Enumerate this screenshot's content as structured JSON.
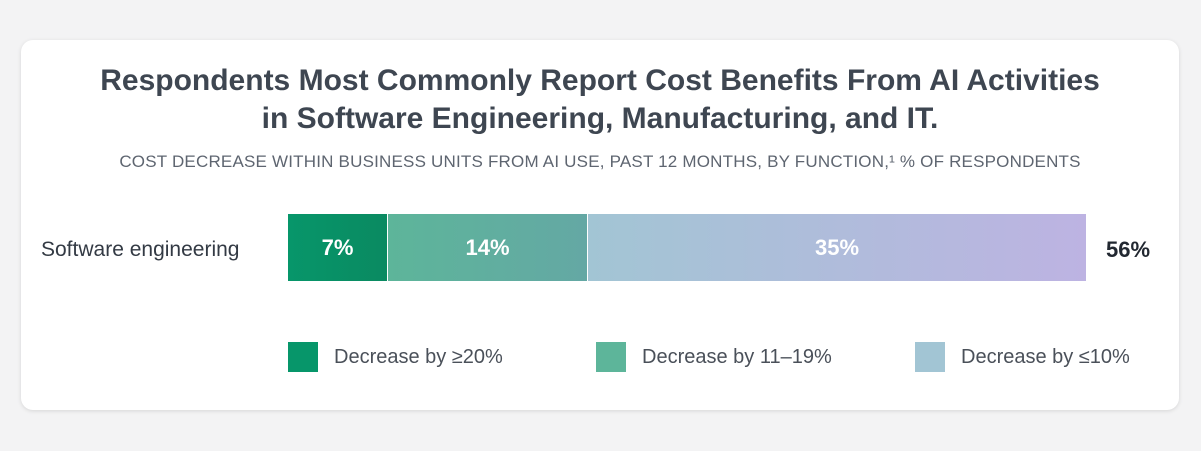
{
  "chart_data": {
    "type": "bar",
    "orientation": "horizontal",
    "stacked": true,
    "title": "Respondents Most Commonly Report Cost Benefits From AI Activities in Software Engineering, Manufacturing, and IT.",
    "title_lines": [
      "Respondents Most Commonly Report Cost Benefits From AI Activities",
      "in Software Engineering, Manufacturing, and IT."
    ],
    "subtitle": "COST DECREASE WITHIN BUSINESS UNITS FROM AI USE, PAST 12 MONTHS, BY FUNCTION,¹ % OF RESPONDENTS",
    "categories": [
      "Software engineering"
    ],
    "series": [
      {
        "name": "Decrease by ≥20%",
        "values": [
          7
        ],
        "data_labels": [
          "7%"
        ],
        "color": "#07966a"
      },
      {
        "name": "Decrease by 11–19%",
        "values": [
          14
        ],
        "data_labels": [
          "14%"
        ],
        "color": "#5db59a"
      },
      {
        "name": "Decrease by ≤10%",
        "values": [
          35
        ],
        "data_labels": [
          "35%"
        ],
        "color": "#a2c5d4"
      }
    ],
    "totals": [
      56
    ],
    "total_labels": [
      "56%"
    ],
    "legend_position": "bottom",
    "grid": false
  }
}
